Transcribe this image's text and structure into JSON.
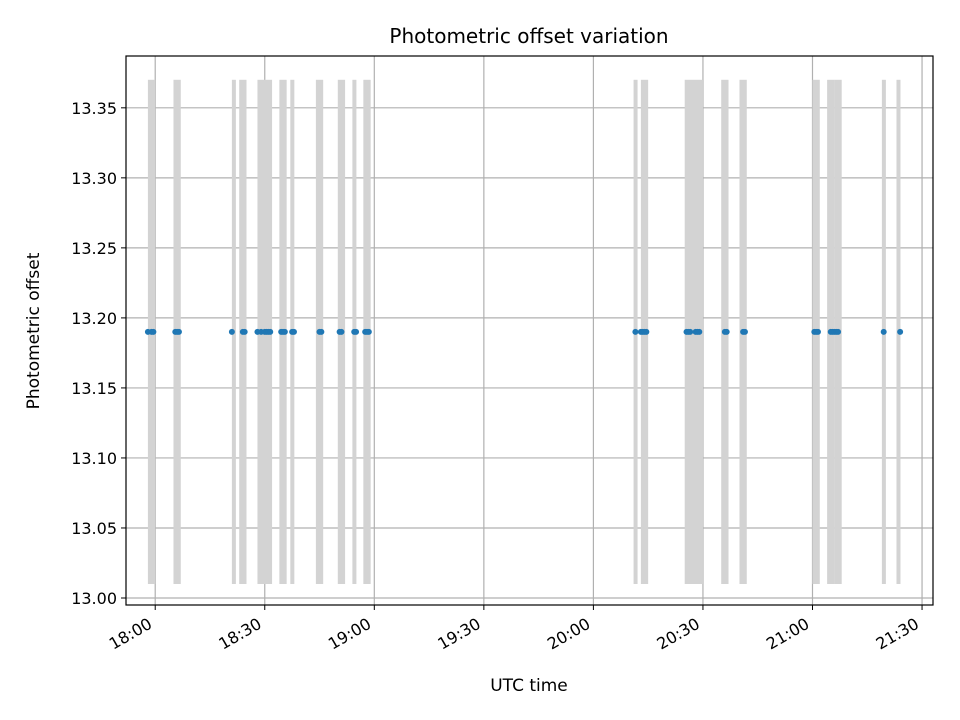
{
  "chart_data": {
    "type": "scatter",
    "title": "Photometric offset variation",
    "xlabel": "UTC time",
    "ylabel": "Photometric offset",
    "x_unit": "UTC time (HH:MM)",
    "xlim": [
      "17:52",
      "21:33"
    ],
    "ylim": [
      12.995,
      13.387
    ],
    "x_ticks": [
      "18:00",
      "18:30",
      "19:00",
      "19:30",
      "20:00",
      "20:30",
      "21:00",
      "21:30"
    ],
    "y_ticks": [
      13.0,
      13.05,
      13.1,
      13.15,
      13.2,
      13.25,
      13.3,
      13.35
    ],
    "y_tick_labels": [
      "13.00",
      "13.05",
      "13.10",
      "13.15",
      "13.20",
      "13.25",
      "13.30",
      "13.35"
    ],
    "grid": true,
    "band_range": [
      13.01,
      13.37
    ],
    "bands": [
      {
        "start": "17:58",
        "end": "18:00"
      },
      {
        "start": "18:05",
        "end": "18:07"
      },
      {
        "start": "18:21",
        "end": "18:22"
      },
      {
        "start": "18:23",
        "end": "18:25"
      },
      {
        "start": "18:28",
        "end": "18:32"
      },
      {
        "start": "18:34",
        "end": "18:36"
      },
      {
        "start": "18:37",
        "end": "18:38"
      },
      {
        "start": "18:44",
        "end": "18:46"
      },
      {
        "start": "18:50",
        "end": "18:52"
      },
      {
        "start": "18:54",
        "end": "18:55"
      },
      {
        "start": "18:57",
        "end": "18:59"
      },
      {
        "start": "20:11",
        "end": "20:12"
      },
      {
        "start": "20:13",
        "end": "20:15"
      },
      {
        "start": "20:25",
        "end": "20:27"
      },
      {
        "start": "20:27",
        "end": "20:30"
      },
      {
        "start": "20:35",
        "end": "20:37"
      },
      {
        "start": "20:40",
        "end": "20:42"
      },
      {
        "start": "21:00",
        "end": "21:02"
      },
      {
        "start": "21:04",
        "end": "21:06"
      },
      {
        "start": "21:06",
        "end": "21:08"
      },
      {
        "start": "21:19",
        "end": "21:20"
      },
      {
        "start": "21:23",
        "end": "21:24"
      }
    ],
    "series": [
      {
        "color": "#1f77b4",
        "points": [
          {
            "x": "17:58",
            "y": 13.19
          },
          {
            "x": "17:59",
            "y": 13.19
          },
          {
            "x": "17:59.5",
            "y": 13.19
          },
          {
            "x": "18:05.5",
            "y": 13.19
          },
          {
            "x": "18:06",
            "y": 13.19
          },
          {
            "x": "18:06.5",
            "y": 13.19
          },
          {
            "x": "18:21",
            "y": 13.19
          },
          {
            "x": "18:24",
            "y": 13.19
          },
          {
            "x": "18:24.5",
            "y": 13.19
          },
          {
            "x": "18:28",
            "y": 13.19
          },
          {
            "x": "18:29",
            "y": 13.19
          },
          {
            "x": "18:30",
            "y": 13.19
          },
          {
            "x": "18:30.5",
            "y": 13.19
          },
          {
            "x": "18:31",
            "y": 13.19
          },
          {
            "x": "18:31.5",
            "y": 13.19
          },
          {
            "x": "18:34.5",
            "y": 13.19
          },
          {
            "x": "18:35",
            "y": 13.19
          },
          {
            "x": "18:35.5",
            "y": 13.19
          },
          {
            "x": "18:37.5",
            "y": 13.19
          },
          {
            "x": "18:38",
            "y": 13.19
          },
          {
            "x": "18:45",
            "y": 13.19
          },
          {
            "x": "18:45.5",
            "y": 13.19
          },
          {
            "x": "18:50.5",
            "y": 13.19
          },
          {
            "x": "18:51",
            "y": 13.19
          },
          {
            "x": "18:54.5",
            "y": 13.19
          },
          {
            "x": "18:55",
            "y": 13.19
          },
          {
            "x": "18:57.5",
            "y": 13.19
          },
          {
            "x": "18:58",
            "y": 13.19
          },
          {
            "x": "18:58.5",
            "y": 13.19
          },
          {
            "x": "20:11.5",
            "y": 13.19
          },
          {
            "x": "20:13",
            "y": 13.19
          },
          {
            "x": "20:13.5",
            "y": 13.19
          },
          {
            "x": "20:14",
            "y": 13.19
          },
          {
            "x": "20:14.5",
            "y": 13.19
          },
          {
            "x": "20:25.5",
            "y": 13.19
          },
          {
            "x": "20:26",
            "y": 13.19
          },
          {
            "x": "20:26.5",
            "y": 13.19
          },
          {
            "x": "20:28",
            "y": 13.19
          },
          {
            "x": "20:28.5",
            "y": 13.19
          },
          {
            "x": "20:29",
            "y": 13.19
          },
          {
            "x": "20:36",
            "y": 13.19
          },
          {
            "x": "20:36.5",
            "y": 13.19
          },
          {
            "x": "20:41",
            "y": 13.19
          },
          {
            "x": "20:41.5",
            "y": 13.19
          },
          {
            "x": "21:00.5",
            "y": 13.19
          },
          {
            "x": "21:01",
            "y": 13.19
          },
          {
            "x": "21:01.5",
            "y": 13.19
          },
          {
            "x": "21:05",
            "y": 13.19
          },
          {
            "x": "21:05.5",
            "y": 13.19
          },
          {
            "x": "21:06",
            "y": 13.19
          },
          {
            "x": "21:06.5",
            "y": 13.19
          },
          {
            "x": "21:07",
            "y": 13.19
          },
          {
            "x": "21:19.5",
            "y": 13.19
          },
          {
            "x": "21:24",
            "y": 13.19
          }
        ]
      }
    ],
    "colors": {
      "points": "#1f77b4",
      "bands": "#d3d3d3",
      "grid": "#b0b0b0",
      "axes": "#000000"
    }
  }
}
